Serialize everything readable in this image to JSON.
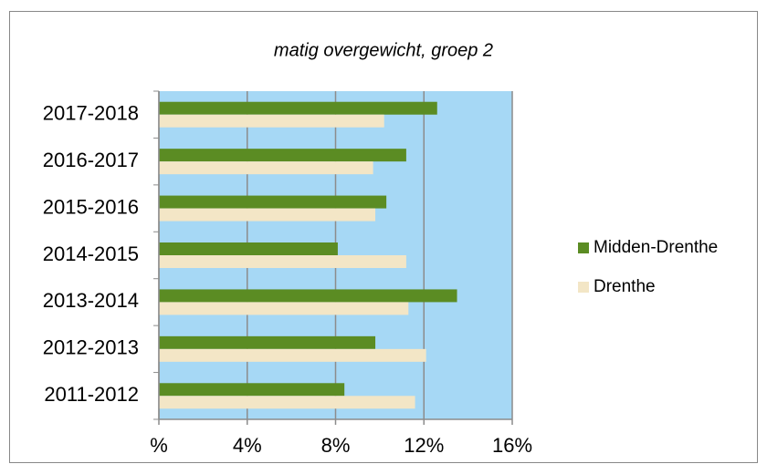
{
  "chart_data": {
    "type": "hbar",
    "title": "matig overgewicht, groep 2",
    "categories": [
      "2011-2012",
      "2012-2013",
      "2013-2014",
      "2014-2015",
      "2015-2016",
      "2016-2017",
      "2017-2018"
    ],
    "series": [
      {
        "name": "Midden-Drenthe",
        "color": "#5b8c23",
        "values": [
          8.4,
          9.8,
          13.5,
          8.1,
          10.3,
          11.2,
          12.6
        ]
      },
      {
        "name": "Drenthe",
        "color": "#f3e6c6",
        "values": [
          11.6,
          12.1,
          11.3,
          11.2,
          9.8,
          9.7,
          10.2
        ]
      }
    ],
    "xlim": [
      0,
      16
    ],
    "xticks": [
      {
        "value": 0,
        "label": "%"
      },
      {
        "value": 4,
        "label": "4%"
      },
      {
        "value": 8,
        "label": "8%"
      },
      {
        "value": 12,
        "label": "12%"
      },
      {
        "value": 16,
        "label": "16%"
      }
    ],
    "grid": true,
    "plot_background": "#a6d8f5",
    "legend": "right"
  }
}
